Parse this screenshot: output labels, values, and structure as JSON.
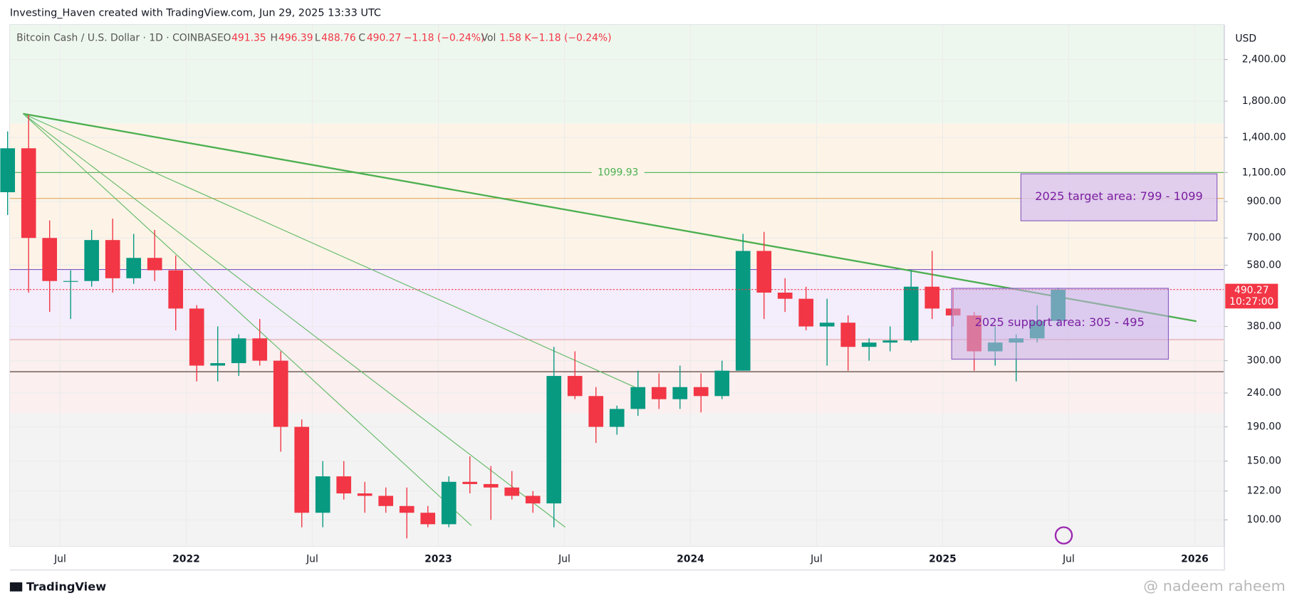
{
  "header": {
    "attribution": "Investing_Haven created with TradingView.com, Jun 29, 2025 13:33 UTC",
    "symbol": "Bitcoin Cash / U.S. Dollar · 1D · COINBASE",
    "o_label": "O",
    "o_value": "491.35",
    "h_label": "H",
    "h_value": "496.39",
    "l_label": "L",
    "l_value": "488.76",
    "c_label": "C",
    "c_value": "490.27",
    "change": "−1.18 (−0.24%)",
    "vol_label": "Vol",
    "vol_value": "1.58 K",
    "vol_change": "−1.18 (−0.24%)"
  },
  "chart_data": {
    "type": "candlestick",
    "log_scale": true,
    "currency": "USD",
    "categories": [
      null,
      null,
      null,
      "Jul",
      null,
      null,
      null,
      null,
      null,
      "2022",
      null,
      null,
      null,
      null,
      null,
      "Jul",
      null,
      null,
      null,
      null,
      null,
      "2023",
      null,
      null,
      null,
      null,
      null,
      "Jul",
      null,
      null,
      null,
      null,
      null,
      "2024",
      null,
      null,
      null,
      null,
      null,
      "Jul",
      null,
      null,
      null,
      null,
      null,
      "2025",
      null,
      null,
      null,
      null,
      null,
      "Jul",
      null,
      null,
      null,
      null,
      null,
      "2026",
      null
    ],
    "open": [
      960,
      1300,
      700,
      520,
      520,
      690,
      530,
      610,
      560,
      430,
      290,
      295,
      350,
      300,
      190,
      105,
      135,
      120,
      118,
      110,
      105,
      97,
      130,
      128,
      125,
      118,
      112,
      270,
      235,
      190,
      215,
      250,
      230,
      250,
      235,
      280,
      640,
      480,
      460,
      380,
      390,
      330,
      340,
      345,
      500,
      430,
      410,
      320,
      340,
      350,
      395,
      null,
      null,
      null,
      null,
      null,
      null,
      null,
      null
    ],
    "high": [
      1460,
      1640,
      790,
      560,
      740,
      800,
      720,
      740,
      620,
      440,
      380,
      360,
      400,
      320,
      200,
      150,
      150,
      130,
      125,
      125,
      110,
      135,
      155,
      145,
      140,
      122,
      330,
      320,
      250,
      220,
      280,
      275,
      290,
      275,
      300,
      720,
      730,
      530,
      500,
      460,
      410,
      350,
      380,
      560,
      640,
      490,
      420,
      380,
      360,
      440,
      496.39,
      null,
      null,
      null,
      null,
      null,
      null,
      null,
      null
    ],
    "low": [
      820,
      480,
      420,
      400,
      500,
      480,
      510,
      520,
      370,
      260,
      260,
      270,
      290,
      160,
      95,
      95,
      115,
      105,
      105,
      88,
      95,
      95,
      120,
      100,
      115,
      105,
      95,
      230,
      170,
      180,
      205,
      215,
      215,
      210,
      230,
      280,
      400,
      420,
      370,
      290,
      280,
      300,
      320,
      340,
      400,
      380,
      280,
      290,
      260,
      340,
      380,
      null,
      null,
      null,
      null,
      null,
      null,
      null,
      null
    ],
    "close": [
      1300,
      700,
      520,
      520,
      690,
      530,
      610,
      560,
      430,
      290,
      295,
      350,
      300,
      190,
      105,
      135,
      120,
      118,
      110,
      105,
      97,
      130,
      128,
      125,
      118,
      112,
      270,
      235,
      190,
      215,
      250,
      230,
      250,
      235,
      280,
      640,
      480,
      460,
      380,
      390,
      330,
      340,
      345,
      500,
      430,
      410,
      320,
      340,
      350,
      395,
      490.27,
      null,
      null,
      null,
      null,
      null,
      null,
      null,
      null
    ],
    "up_color": "#089981",
    "down_color": "#f23645",
    "ylim": [
      83.4,
      3050
    ],
    "yticks": [
      {
        "value": 100,
        "label": "100.00"
      },
      {
        "value": 122,
        "label": "122.00"
      },
      {
        "value": 150,
        "label": "150.00"
      },
      {
        "value": 190,
        "label": "190.00"
      },
      {
        "value": 240,
        "label": "240.00"
      },
      {
        "value": 300,
        "label": "300.00"
      },
      {
        "value": 380,
        "label": "380.00"
      },
      {
        "value": 580,
        "label": "580.00"
      },
      {
        "value": 700,
        "label": "700.00"
      },
      {
        "value": 900,
        "label": "900.00"
      },
      {
        "value": 1100,
        "label": "1,100.00"
      },
      {
        "value": 1400,
        "label": "1,400.00"
      },
      {
        "value": 1800,
        "label": "1,800.00"
      },
      {
        "value": 2400,
        "label": "2,400.00"
      }
    ],
    "grid": true,
    "levels": [
      {
        "value": 1099.93,
        "color": "#4caf50"
      },
      {
        "value": 920,
        "color": "#e0b070"
      },
      {
        "value": 563,
        "color": "#7e57c2"
      },
      {
        "value": 347,
        "color": "#e0a0a0"
      },
      {
        "value": 278,
        "color": "#5d4037"
      }
    ],
    "last_price_color": "#f23645",
    "countdown": "10:27:00",
    "annotations": {
      "target": "2025 target area: 799 - 1099",
      "support": "2025 support area: 305 - 495"
    },
    "footer": "TradingView",
    "watermark": "@ nadeem raheem"
  }
}
